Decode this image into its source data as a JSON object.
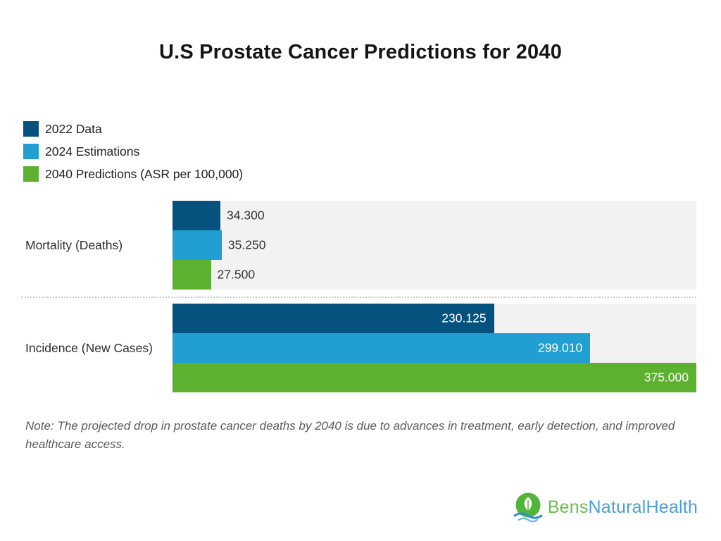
{
  "title": "U.S Prostate Cancer Predictions for 2040",
  "legend": [
    {
      "label": "2022 Data",
      "color": "#05527e"
    },
    {
      "label": "2024 Estimations",
      "color": "#219fd3"
    },
    {
      "label": "2040 Predictions (ASR per 100,000)",
      "color": "#5cb130"
    }
  ],
  "chart_data": {
    "type": "bar",
    "orientation": "horizontal",
    "title": "U.S Prostate Cancer Predictions for 2040",
    "categories": [
      "Mortality (Deaths)",
      "Incidence (New Cases)"
    ],
    "series": [
      {
        "name": "2022 Data",
        "color": "#05527e",
        "values": [
          34300,
          230125
        ],
        "labels": [
          "34.300",
          "230.125"
        ]
      },
      {
        "name": "2024 Estimations",
        "color": "#219fd3",
        "values": [
          35250,
          299010
        ],
        "labels": [
          "35.250",
          "299.010"
        ]
      },
      {
        "name": "2040 Predictions (ASR per 100,000)",
        "color": "#5cb130",
        "values": [
          27500,
          375000
        ],
        "labels": [
          "27.500",
          "375.000"
        ]
      }
    ],
    "xlim": [
      0,
      375000
    ],
    "grid": false,
    "legend_position": "top-left",
    "track_color": "#f2f2f2",
    "label_outside_below_fraction": 0.2
  },
  "note": "Note: The projected drop in prostate cancer deaths by 2040 is due to advances in treatment, early detection, and improved healthcare access.",
  "logo": {
    "part1": "Bens",
    "part2": "NaturalHealth",
    "part1_color": "#6bbf4c",
    "part2_color": "#4a9fd9"
  },
  "colors": {
    "bar_track": "#f2f2f2",
    "separator_dotted": "#c9c9c9",
    "value_inside_text": "#ffffff",
    "value_outside_text": "#333333",
    "logo_circle_green": "#53b43c",
    "logo_wave_dark_blue": "#2e8fc8",
    "logo_wave_light_blue": "#62b7e6"
  }
}
